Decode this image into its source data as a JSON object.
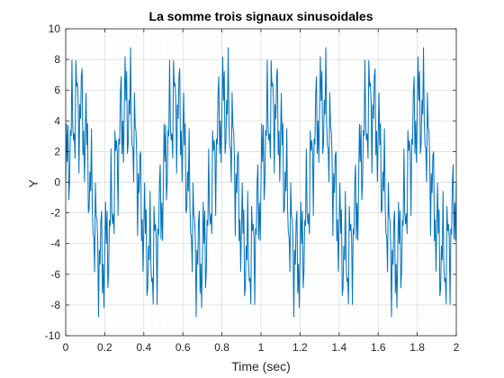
{
  "chart_data": {
    "type": "line",
    "title": "La somme trois signaux sinusoidales",
    "xlabel": "Time (sec)",
    "ylabel": "Y",
    "xlim": [
      0,
      2
    ],
    "ylim": [
      -10,
      10
    ],
    "xticks": [
      0,
      0.2,
      0.4,
      0.6,
      0.8,
      1,
      1.2,
      1.4,
      1.6,
      1.8,
      2
    ],
    "xtick_labels": [
      "0",
      "0.2",
      "0.4",
      "0.6",
      "0.8",
      "1",
      "1.2",
      "1.4",
      "1.6",
      "1.8",
      "2"
    ],
    "yticks": [
      -10,
      -8,
      -6,
      -4,
      -2,
      0,
      2,
      4,
      6,
      8,
      10
    ],
    "ytick_labels": [
      "-10",
      "-8",
      "-6",
      "-4",
      "-2",
      "0",
      "2",
      "4",
      "6",
      "8",
      "10"
    ],
    "grid": true,
    "minor_grid": true,
    "box": true,
    "series": [
      {
        "color": "#0072BD",
        "sample_step": 0.004,
        "components": [
          {
            "amplitude": 5,
            "frequency_hz": 4,
            "phase_rad": 0
          },
          {
            "amplitude": 2.5,
            "frequency_hz": 40,
            "phase_rad": 0
          },
          {
            "amplitude": 2,
            "frequency_hz": 100,
            "phase_rad": 0
          }
        ]
      }
    ]
  },
  "colors": {
    "line": "#0072BD",
    "axes": "#262626",
    "grid": "#d9d9d9",
    "minor_grid": "#ececec"
  }
}
